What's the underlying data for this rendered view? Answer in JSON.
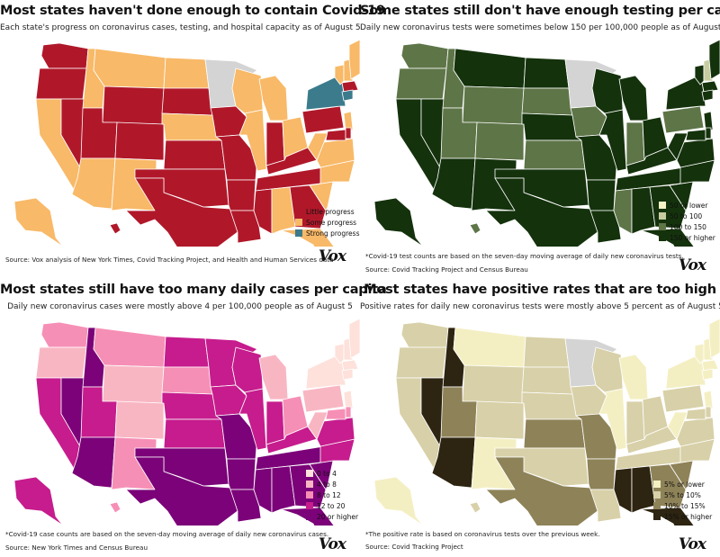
{
  "brand": "Vox",
  "colors": {
    "covid_progress": {
      "Little progress": "#b0182a",
      "Some progress": "#f8b968",
      "Strong progress": "#3b7b8c",
      "no data": "#d4d4d4"
    },
    "testing": {
      "50 or lower": "#f6f3c6",
      "50 to 100": "#c7cda0",
      "100 to 150": "#5e7548",
      "150 or higher": "#14320c",
      "no data": "#d4d4d4"
    },
    "cases": {
      "0 to 4": "#fde1da",
      "4 to 8": "#f8b6c3",
      "8 to 12": "#f68fb5",
      "12 to 20": "#c61c8d",
      "20 or higher": "#7b0278"
    },
    "positivity": {
      "5% or lower": "#f4efc3",
      "5% to 10%": "#d8d0a8",
      "10% to 15%": "#8e8258",
      "15% or higher": "#2d2411",
      "no data": "#d4d4d4"
    }
  },
  "panels": [
    {
      "title": "Most states haven't done enough to contain Covid-19",
      "subtitle": "Each state's progress on coronavirus cases, testing, and hospital capacity as of August 5",
      "legend": [
        "Little progress",
        "Some progress",
        "Strong progress"
      ],
      "note": "",
      "source": "Source: Vox analysis of New York Times, Covid Tracking Project, and Health and Human Services data",
      "states": {
        "WA": "Little progress",
        "OR": "Little progress",
        "CA": "Some progress",
        "NV": "Little progress",
        "ID": "Some progress",
        "MT": "Some progress",
        "WY": "Little progress",
        "UT": "Little progress",
        "AZ": "Some progress",
        "CO": "Little progress",
        "NM": "Some progress",
        "ND": "Some progress",
        "SD": "Little progress",
        "NE": "Some progress",
        "KS": "Little progress",
        "OK": "Little progress",
        "TX": "Little progress",
        "MN": "no data",
        "IA": "Little progress",
        "MO": "Little progress",
        "AR": "Little progress",
        "LA": "Little progress",
        "WI": "Some progress",
        "IL": "Some progress",
        "MI": "Some progress",
        "IN": "Little progress",
        "OH": "Some progress",
        "KY": "Little progress",
        "TN": "Little progress",
        "MS": "Little progress",
        "AL": "Some progress",
        "GA": "Little progress",
        "FL": "Some progress",
        "SC": "Some progress",
        "NC": "Some progress",
        "VA": "Some progress",
        "WV": "Some progress",
        "PA": "Little progress",
        "NY": "Strong progress",
        "VT": "Some progress",
        "NH": "Some progress",
        "ME": "Some progress",
        "MA": "Little progress",
        "CT": "Strong progress",
        "NJ": "Some progress",
        "MD": "Little progress",
        "DE": "Little progress",
        "AK": "Some progress",
        "HI": "Little progress"
      }
    },
    {
      "title": "Some states still don't have enough testing per capita",
      "subtitle": "Daily new coronavirus tests were sometimes below 150 per 100,000 people as of August 5",
      "legend": [
        "50 or lower",
        "50 to 100",
        "100 to 150",
        "150 or higher"
      ],
      "note": "*Covid-19 test counts are based on the seven-day moving average of daily new coronavirus tests.",
      "source": "Source: Covid Tracking Project and Census Bureau",
      "states": {
        "WA": "100 to 150",
        "OR": "100 to 150",
        "CA": "150 or higher",
        "NV": "150 or higher",
        "ID": "100 to 150",
        "MT": "150 or higher",
        "WY": "100 to 150",
        "UT": "100 to 150",
        "AZ": "150 or higher",
        "CO": "100 to 150",
        "NM": "150 or higher",
        "ND": "150 or higher",
        "SD": "100 to 150",
        "NE": "150 or higher",
        "KS": "100 to 150",
        "OK": "150 or higher",
        "TX": "150 or higher",
        "MN": "no data",
        "IA": "100 to 150",
        "MO": "150 or higher",
        "AR": "150 or higher",
        "LA": "150 or higher",
        "WI": "150 or higher",
        "IL": "150 or higher",
        "MI": "150 or higher",
        "IN": "100 to 150",
        "OH": "150 or higher",
        "KY": "150 or higher",
        "TN": "150 or higher",
        "MS": "100 to 150",
        "AL": "150 or higher",
        "GA": "150 or higher",
        "FL": "150 or higher",
        "SC": "150 or higher",
        "NC": "150 or higher",
        "VA": "150 or higher",
        "WV": "150 or higher",
        "PA": "100 to 150",
        "NY": "150 or higher",
        "VT": "150 or higher",
        "NH": "50 to 100",
        "ME": "150 or higher",
        "MA": "150 or higher",
        "CT": "150 or higher",
        "NJ": "150 or higher",
        "MD": "150 or higher",
        "DE": "150 or higher",
        "AK": "150 or higher",
        "HI": "100 to 150"
      }
    },
    {
      "title": "Most states still have too many daily cases per capita",
      "subtitle": "Daily new coronavirus cases were mostly above 4 per 100,000 people as of August 5",
      "legend": [
        "0 to 4",
        "4 to 8",
        "8 to 12",
        "12 to 20",
        "20 or higher"
      ],
      "note": "*Covid-19 case counts are based on the seven-day moving average of daily new coronavirus cases.",
      "source": "Source: New York Times and Census Bureau",
      "states": {
        "WA": "8 to 12",
        "OR": "4 to 8",
        "CA": "12 to 20",
        "NV": "20 or higher",
        "ID": "20 or higher",
        "MT": "8 to 12",
        "WY": "4 to 8",
        "UT": "12 to 20",
        "AZ": "20 or higher",
        "CO": "4 to 8",
        "NM": "8 to 12",
        "ND": "12 to 20",
        "SD": "8 to 12",
        "NE": "12 to 20",
        "KS": "12 to 20",
        "OK": "20 or higher",
        "TX": "20 or higher",
        "MN": "12 to 20",
        "IA": "12 to 20",
        "MO": "20 or higher",
        "AR": "20 or higher",
        "LA": "20 or higher",
        "WI": "12 to 20",
        "IL": "12 to 20",
        "MI": "4 to 8",
        "IN": "12 to 20",
        "OH": "8 to 12",
        "KY": "12 to 20",
        "TN": "20 or higher",
        "MS": "20 or higher",
        "AL": "20 or higher",
        "GA": "20 or higher",
        "FL": "20 or higher",
        "SC": "20 or higher",
        "NC": "12 to 20",
        "VA": "12 to 20",
        "WV": "4 to 8",
        "PA": "4 to 8",
        "NY": "0 to 4",
        "VT": "0 to 4",
        "NH": "0 to 4",
        "ME": "0 to 4",
        "MA": "0 to 4",
        "CT": "0 to 4",
        "NJ": "0 to 4",
        "MD": "8 to 12",
        "DE": "8 to 12",
        "AK": "12 to 20",
        "HI": "8 to 12"
      }
    },
    {
      "title": "Most states have positive rates that are too high",
      "subtitle": "Positive rates for daily new coronavirus tests were mostly above 5 percent as of August 5",
      "legend": [
        "5% or lower",
        "5% to 10%",
        "10% to 15%",
        "15% or higher"
      ],
      "note": "*The positive rate is based on coronavirus tests over the previous week.",
      "source": "Source: Covid Tracking Project",
      "states": {
        "WA": "5% to 10%",
        "OR": "5% to 10%",
        "CA": "5% to 10%",
        "NV": "15% or higher",
        "ID": "15% or higher",
        "MT": "5% or lower",
        "WY": "5% to 10%",
        "UT": "10% to 15%",
        "AZ": "15% or higher",
        "CO": "5% to 10%",
        "NM": "5% or lower",
        "ND": "5% to 10%",
        "SD": "5% to 10%",
        "NE": "5% to 10%",
        "KS": "10% to 15%",
        "OK": "5% to 10%",
        "TX": "10% to 15%",
        "MN": "no data",
        "IA": "5% to 10%",
        "MO": "10% to 15%",
        "AR": "10% to 15%",
        "LA": "5% to 10%",
        "WI": "5% to 10%",
        "IL": "5% or lower",
        "MI": "5% or lower",
        "IN": "5% to 10%",
        "OH": "5% to 10%",
        "KY": "5% to 10%",
        "TN": "5% to 10%",
        "MS": "15% or higher",
        "AL": "15% or higher",
        "GA": "10% to 15%",
        "FL": "15% or higher",
        "SC": "10% to 15%",
        "NC": "5% to 10%",
        "VA": "5% to 10%",
        "WV": "5% or lower",
        "PA": "5% to 10%",
        "NY": "5% or lower",
        "VT": "5% or lower",
        "NH": "5% or lower",
        "ME": "5% or lower",
        "MA": "5% or lower",
        "CT": "5% or lower",
        "NJ": "5% or lower",
        "MD": "5% to 10%",
        "DE": "5% to 10%",
        "AK": "5% or lower",
        "HI": "5% to 10%"
      }
    }
  ]
}
